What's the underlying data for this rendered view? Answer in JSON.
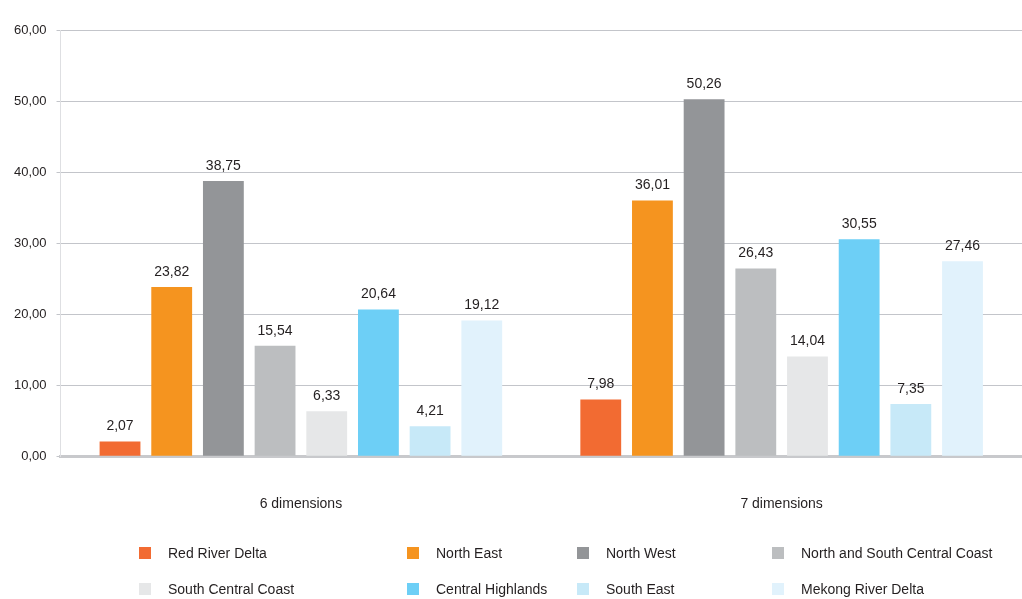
{
  "chart_data": {
    "type": "bar",
    "categories": [
      "6 dimensions",
      "7 dimensions"
    ],
    "series": [
      {
        "name": "Red River Delta",
        "color": "#f26b32",
        "values": [
          2.07,
          7.98
        ],
        "value_labels": [
          "2,07",
          "7,98"
        ]
      },
      {
        "name": "North East",
        "color": "#f5941f",
        "values": [
          23.82,
          36.01
        ],
        "value_labels": [
          "23,82",
          "36,01"
        ]
      },
      {
        "name": "North West",
        "color": "#939598",
        "values": [
          38.75,
          50.26
        ],
        "value_labels": [
          "38,75",
          "50,26"
        ]
      },
      {
        "name": "North and South Central Coast",
        "color": "#bcbec0",
        "values": [
          15.54,
          26.43
        ],
        "value_labels": [
          "15,54",
          "26,43"
        ]
      },
      {
        "name": "South Central Coast",
        "color": "#e6e7e8",
        "values": [
          6.33,
          14.04
        ],
        "value_labels": [
          "6,33",
          "14,04"
        ]
      },
      {
        "name": "Central Highlands",
        "color": "#6dcff6",
        "values": [
          20.64,
          30.55
        ],
        "value_labels": [
          "20,64",
          "30,55"
        ]
      },
      {
        "name": "South East",
        "color": "#c7e9f8",
        "values": [
          4.21,
          7.35
        ],
        "value_labels": [
          "4,21",
          "7,35"
        ]
      },
      {
        "name": "Mekong River Delta",
        "color": "#e1f2fc",
        "values": [
          19.12,
          27.46
        ],
        "value_labels": [
          "19,12",
          "27,46"
        ]
      }
    ],
    "ylim": [
      0,
      60
    ],
    "yticks": [
      {
        "value": 0,
        "label": "0,00"
      },
      {
        "value": 10,
        "label": "10,00"
      },
      {
        "value": 20,
        "label": "20,00"
      },
      {
        "value": 30,
        "label": "30,00"
      },
      {
        "value": 40,
        "label": "40,00"
      },
      {
        "value": 50,
        "label": "50,00"
      },
      {
        "value": 60,
        "label": "60,00"
      }
    ],
    "grid": "y",
    "legend": "bottom"
  }
}
